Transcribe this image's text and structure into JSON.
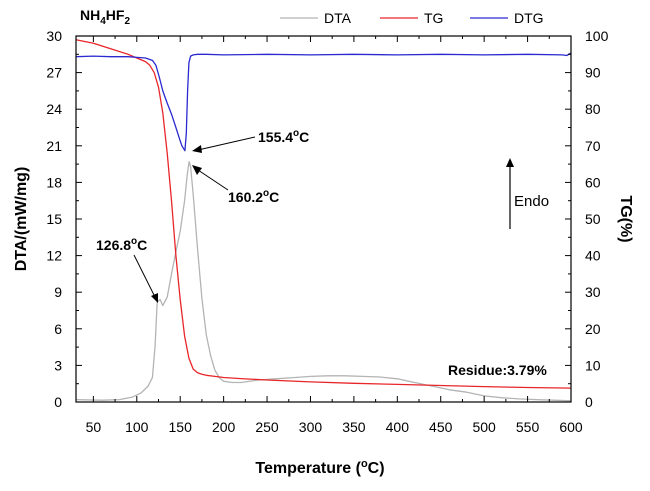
{
  "chart_data": {
    "type": "line",
    "title": "NH4HF2",
    "title_parts": {
      "a": "NH",
      "s1": "4",
      "b": "HF",
      "s2": "2"
    },
    "xlabel": {
      "pre": "Temperature (",
      "sup": "o",
      "post": "C)"
    },
    "ylabel_left": "DTA/(mW/mg)",
    "ylabel_right": "TG(%)",
    "xlim": [
      30,
      600
    ],
    "ylim_left": [
      0,
      30
    ],
    "ylim_right": [
      0,
      100
    ],
    "x_ticks": [
      50,
      100,
      150,
      200,
      250,
      300,
      350,
      400,
      450,
      500,
      550,
      600
    ],
    "y_left_ticks": [
      0,
      3,
      6,
      9,
      12,
      15,
      18,
      21,
      24,
      27,
      30
    ],
    "y_right_ticks": [
      0,
      10,
      20,
      30,
      40,
      50,
      60,
      70,
      80,
      90,
      100
    ],
    "legend": [
      "DTA",
      "TG",
      "DTG"
    ],
    "colors": {
      "DTA": "#b4b4b4",
      "TG": "#e8262a",
      "DTG": "#2a2ad0"
    },
    "series": [
      {
        "name": "DTA",
        "axis": "left",
        "x": [
          30,
          60,
          80,
          95,
          105,
          113,
          118,
          121,
          123.5,
          126.8,
          130,
          135,
          140,
          145,
          150,
          155,
          158,
          160.2,
          162,
          165,
          170,
          175,
          180,
          185,
          190,
          195,
          200,
          210,
          220,
          240,
          260,
          280,
          300,
          320,
          340,
          360,
          380,
          400,
          420,
          440,
          460,
          480,
          500,
          520,
          540,
          560,
          580,
          600
        ],
        "y": [
          0.2,
          0.15,
          0.2,
          0.4,
          0.75,
          1.3,
          2.0,
          4.5,
          8.2,
          8.4,
          7.9,
          8.6,
          10.5,
          12.3,
          14.0,
          16.5,
          18.6,
          19.7,
          19.3,
          17.0,
          12.5,
          8.5,
          5.5,
          3.8,
          2.6,
          2.0,
          1.7,
          1.6,
          1.6,
          1.8,
          1.9,
          2.0,
          2.1,
          2.15,
          2.15,
          2.1,
          2.05,
          1.9,
          1.6,
          1.3,
          1.0,
          0.8,
          0.5,
          0.35,
          0.25,
          0.2,
          0.15,
          0.1
        ]
      },
      {
        "name": "TG",
        "axis": "right",
        "x": [
          30,
          50,
          70,
          90,
          100,
          110,
          115,
          120,
          125,
          130,
          135,
          140,
          145,
          150,
          155,
          160,
          165,
          170,
          175,
          180,
          190,
          200,
          220,
          250,
          300,
          350,
          400,
          450,
          500,
          550,
          600
        ],
        "y": [
          99,
          98,
          96.5,
          95,
          94,
          93,
          92,
          90,
          86,
          79,
          68,
          55,
          40,
          28,
          18,
          12,
          9,
          8,
          7.6,
          7.3,
          7.0,
          6.7,
          6.4,
          6.0,
          5.5,
          5.1,
          4.8,
          4.5,
          4.2,
          3.95,
          3.79
        ]
      },
      {
        "name": "DTG",
        "axis": "left",
        "x": [
          30,
          50,
          70,
          90,
          100,
          110,
          118,
          122,
          126,
          130,
          135,
          140,
          145,
          150,
          152,
          155.4,
          157,
          158.5,
          160,
          162,
          165,
          170,
          180,
          200,
          250,
          300,
          350,
          400,
          450,
          500,
          550,
          590,
          595,
          600
        ],
        "y": [
          28.3,
          28.35,
          28.3,
          28.3,
          28.25,
          28.2,
          28.0,
          27.6,
          26.6,
          25.5,
          24.5,
          23.6,
          22.5,
          21.4,
          21.0,
          20.6,
          22.0,
          25.5,
          27.8,
          28.35,
          28.45,
          28.5,
          28.5,
          28.45,
          28.5,
          28.45,
          28.5,
          28.45,
          28.5,
          28.45,
          28.5,
          28.45,
          28.4,
          28.6
        ]
      }
    ],
    "annotations": [
      {
        "label": "155.4",
        "unit": "C",
        "sup": "o"
      },
      {
        "label": "160.2",
        "unit": "C",
        "sup": "o"
      },
      {
        "label": "126.8",
        "unit": "C",
        "sup": "o"
      }
    ],
    "endo_label": "Endo",
    "residue_label": "Residue:3.79%"
  }
}
